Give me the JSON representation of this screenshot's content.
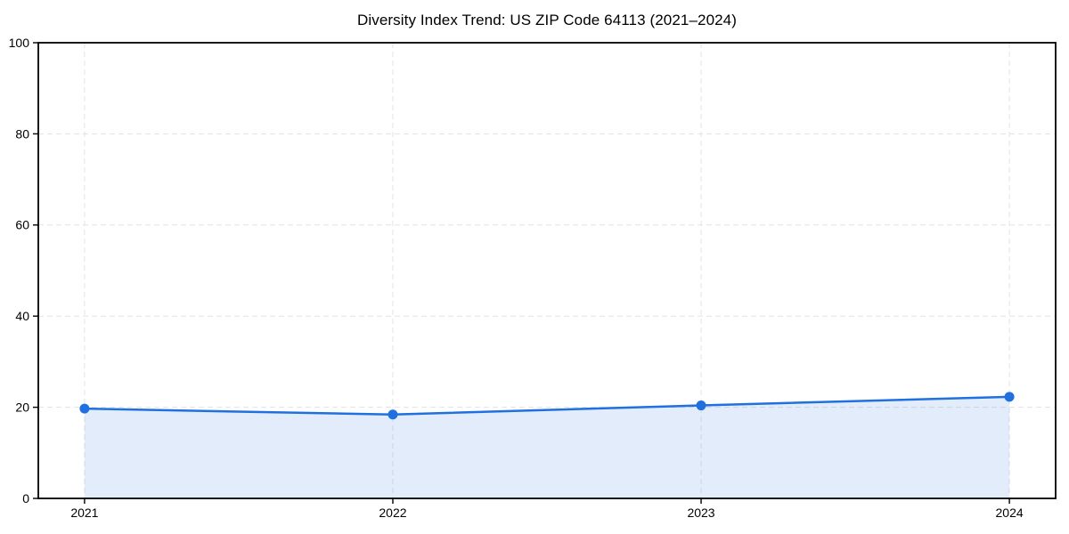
{
  "page": {
    "background": "#ffffff"
  },
  "chart_data": {
    "type": "line",
    "title": "Diversity Index Trend: US ZIP Code 64113 (2021–2024)",
    "x": [
      2021,
      2022,
      2023,
      2024
    ],
    "xtick_labels": [
      "2021",
      "2022",
      "2023",
      "2024"
    ],
    "series": [
      {
        "name": "Diversity Index",
        "values": [
          19.7,
          18.4,
          20.4,
          22.3
        ]
      }
    ],
    "xlabel": "",
    "ylabel": "",
    "xlim": [
      2020.85,
      2024.15
    ],
    "ylim": [
      0,
      100
    ],
    "yticks": [
      0,
      20,
      40,
      60,
      80,
      100
    ],
    "grid": "dashed",
    "grid_dash": [
      6,
      4
    ],
    "legend": "none",
    "marker": "circle",
    "marker_radius": 5.5,
    "line_width": 2.5,
    "area_fill": true,
    "colors": {
      "line": "#2070e0",
      "marker": "#2070e0",
      "fill": "rgba(32,112,224,0.13)",
      "grid": "#e3e3e3",
      "axis": "#000000",
      "text": "#000000",
      "background": "#ffffff"
    }
  }
}
